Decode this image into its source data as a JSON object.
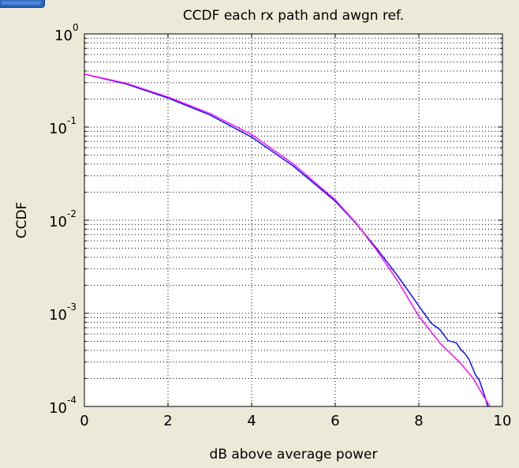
{
  "chart_data": {
    "type": "line",
    "title": "CCDF each rx path and awgn ref.",
    "xlabel": "dB above average power",
    "ylabel": "CCDF",
    "xlim": [
      0,
      10
    ],
    "ylim": [
      0.0001,
      1
    ],
    "yscale": "log",
    "grid": true,
    "grid_style": "dotted",
    "x_ticks": [
      0,
      2,
      4,
      6,
      8,
      10
    ],
    "x_tick_labels": [
      "0",
      "2",
      "4",
      "6",
      "8",
      "10"
    ],
    "y_ticks": [
      {
        "value": 1,
        "base": "10",
        "exp": "0"
      },
      {
        "value": 0.1,
        "base": "10",
        "exp": "-1"
      },
      {
        "value": 0.01,
        "base": "10",
        "exp": "-2"
      },
      {
        "value": 0.001,
        "base": "10",
        "exp": "-3"
      },
      {
        "value": 0.0001,
        "base": "10",
        "exp": "-4"
      }
    ],
    "series": [
      {
        "name": "rx path",
        "color": "#0000ff",
        "x": [
          0,
          1,
          2,
          3,
          4,
          5,
          6,
          6.5,
          7,
          7.5,
          8,
          8.3,
          8.5,
          8.7,
          8.9,
          9.0,
          9.1,
          9.2,
          9.3,
          9.35,
          9.45,
          9.55,
          9.65
        ],
        "y": [
          0.37,
          0.29,
          0.205,
          0.135,
          0.078,
          0.038,
          0.016,
          0.0092,
          0.0049,
          0.0025,
          0.0012,
          0.00078,
          0.00067,
          0.00051,
          0.00048,
          0.00041,
          0.00037,
          0.00032,
          0.00025,
          0.00022,
          0.00019,
          0.00014,
          0.0001
        ]
      },
      {
        "name": "awgn ref.",
        "color": "#ff00ff",
        "x": [
          0,
          1,
          2,
          3,
          4,
          5,
          6,
          6.5,
          7,
          7.5,
          8,
          8.5,
          9,
          9.3,
          9.5,
          9.7
        ],
        "y": [
          0.37,
          0.295,
          0.21,
          0.14,
          0.083,
          0.04,
          0.0165,
          0.0093,
          0.0047,
          0.0022,
          0.00093,
          0.00048,
          0.00029,
          0.0002,
          0.00014,
          0.0001
        ]
      }
    ],
    "legend": "none"
  },
  "colors": {
    "background": "#ece9d8",
    "plot_background": "#ffffff",
    "axis": "#000000",
    "grid": "#000000"
  }
}
